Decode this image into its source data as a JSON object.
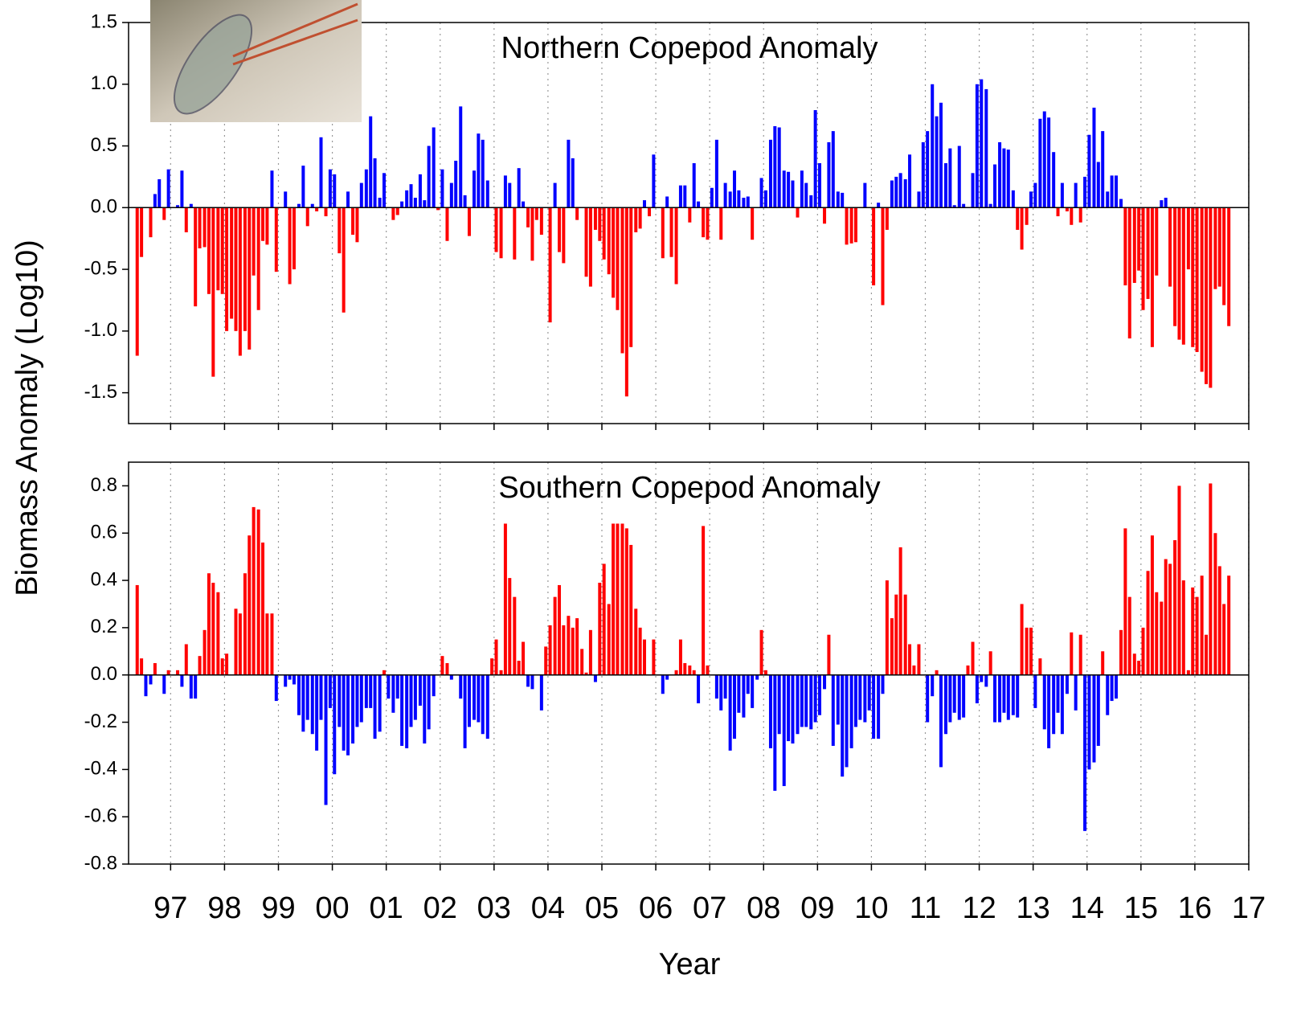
{
  "chart_data": [
    {
      "type": "bar",
      "title": "Northern Copepod Anomaly",
      "ylabel": "Biomass Anomaly (Log10)",
      "positive_color": "#0000ff",
      "negative_color": "#ff0000",
      "xgrid": true,
      "xlim": [
        1996.22,
        2017
      ],
      "ylim": [
        -1.75,
        1.5
      ],
      "xticks": [
        1997,
        1998,
        1999,
        2000,
        2001,
        2002,
        2003,
        2004,
        2005,
        2006,
        2007,
        2008,
        2009,
        2010,
        2011,
        2012,
        2013,
        2014,
        2015,
        2016,
        2017
      ],
      "yticks": [
        1.5,
        {
          "value": 1,
          "label": "1.0"
        },
        0.5,
        {
          "value": 0,
          "label": "0.0"
        },
        -0.5,
        {
          "value": -1,
          "label": "-1.0"
        },
        -1.5
      ],
      "x": [
        1996.38,
        1996.46,
        1996.54,
        1996.63,
        1996.71,
        1996.79,
        1996.88,
        1996.96,
        1997.04,
        1997.13,
        1997.21,
        1997.29,
        1997.38,
        1997.46,
        1997.54,
        1997.63,
        1997.71,
        1997.79,
        1997.88,
        1997.96,
        1998.04,
        1998.13,
        1998.21,
        1998.29,
        1998.38,
        1998.46,
        1998.54,
        1998.63,
        1998.71,
        1998.79,
        1998.88,
        1998.96,
        1999.04,
        1999.13,
        1999.21,
        1999.29,
        1999.38,
        1999.46,
        1999.54,
        1999.63,
        1999.71,
        1999.79,
        1999.88,
        1999.96,
        2000.04,
        2000.13,
        2000.21,
        2000.29,
        2000.38,
        2000.46,
        2000.54,
        2000.63,
        2000.71,
        2000.79,
        2000.88,
        2000.96,
        2001.04,
        2001.13,
        2001.21,
        2001.29,
        2001.38,
        2001.46,
        2001.54,
        2001.63,
        2001.71,
        2001.79,
        2001.88,
        2001.96,
        2002.04,
        2002.13,
        2002.21,
        2002.29,
        2002.38,
        2002.46,
        2002.54,
        2002.63,
        2002.71,
        2002.79,
        2002.88,
        2002.96,
        2003.04,
        2003.13,
        2003.21,
        2003.29,
        2003.38,
        2003.46,
        2003.54,
        2003.63,
        2003.71,
        2003.79,
        2003.88,
        2003.96,
        2004.04,
        2004.13,
        2004.21,
        2004.29,
        2004.38,
        2004.46,
        2004.54,
        2004.63,
        2004.71,
        2004.79,
        2004.88,
        2004.96,
        2005.04,
        2005.13,
        2005.21,
        2005.29,
        2005.38,
        2005.46,
        2005.54,
        2005.63,
        2005.71,
        2005.79,
        2005.88,
        2005.96,
        2006.04,
        2006.13,
        2006.21,
        2006.29,
        2006.38,
        2006.46,
        2006.54,
        2006.63,
        2006.71,
        2006.79,
        2006.88,
        2006.96,
        2007.04,
        2007.13,
        2007.21,
        2007.29,
        2007.38,
        2007.46,
        2007.54,
        2007.63,
        2007.71,
        2007.79,
        2007.88,
        2007.96,
        2008.04,
        2008.13,
        2008.21,
        2008.29,
        2008.38,
        2008.46,
        2008.54,
        2008.63,
        2008.71,
        2008.79,
        2008.88,
        2008.96,
        2009.04,
        2009.13,
        2009.21,
        2009.29,
        2009.38,
        2009.46,
        2009.54,
        2009.63,
        2009.71,
        2009.79,
        2009.88,
        2009.96,
        2010.04,
        2010.13,
        2010.21,
        2010.29,
        2010.38,
        2010.46,
        2010.54,
        2010.63,
        2010.71,
        2010.79,
        2010.88,
        2010.96,
        2011.04,
        2011.13,
        2011.21,
        2011.29,
        2011.38,
        2011.46,
        2011.54,
        2011.63,
        2011.71,
        2011.79,
        2011.88,
        2011.96,
        2012.04,
        2012.13,
        2012.21,
        2012.29,
        2012.38,
        2012.46,
        2012.54,
        2012.63,
        2012.71,
        2012.79,
        2012.88,
        2012.96,
        2013.04,
        2013.13,
        2013.21,
        2013.29,
        2013.38,
        2013.46,
        2013.54,
        2013.63,
        2013.71,
        2013.79,
        2013.88,
        2013.96,
        2014.04,
        2014.13,
        2014.21,
        2014.29,
        2014.38,
        2014.46,
        2014.54,
        2014.63,
        2014.71,
        2014.79,
        2014.88,
        2014.96,
        2015.04,
        2015.13,
        2015.21,
        2015.29,
        2015.38,
        2015.46,
        2015.54,
        2015.63,
        2015.71,
        2015.79,
        2015.88,
        2015.96,
        2016.04,
        2016.13,
        2016.21,
        2016.29,
        2016.38,
        2016.46,
        2016.54,
        2016.63
      ],
      "values": [
        -1.2,
        -0.4,
        null,
        -0.24,
        0.11,
        0.23,
        -0.1,
        0.31,
        null,
        0.02,
        0.3,
        -0.2,
        0.03,
        -0.8,
        -0.33,
        -0.32,
        -0.7,
        -1.37,
        -0.67,
        -0.7,
        -1.0,
        -0.9,
        -1.0,
        -1.2,
        -1.0,
        -1.15,
        -0.55,
        -0.83,
        -0.27,
        -0.3,
        0.3,
        -0.52,
        null,
        0.13,
        -0.62,
        -0.5,
        0.03,
        0.34,
        -0.15,
        0.03,
        -0.03,
        0.57,
        -0.07,
        0.31,
        0.27,
        -0.37,
        -0.85,
        0.13,
        -0.22,
        -0.28,
        0.2,
        0.31,
        0.74,
        0.4,
        0.08,
        0.28,
        null,
        -0.1,
        -0.06,
        0.05,
        0.14,
        0.19,
        0.08,
        0.27,
        0.06,
        0.5,
        0.65,
        -0.02,
        0.31,
        -0.27,
        0.2,
        0.38,
        0.82,
        0.1,
        -0.23,
        0.3,
        0.6,
        0.55,
        0.22,
        null,
        -0.36,
        -0.41,
        0.26,
        0.2,
        -0.42,
        0.32,
        0.05,
        -0.16,
        -0.43,
        -0.1,
        -0.22,
        null,
        -0.93,
        0.2,
        -0.36,
        -0.45,
        0.55,
        0.4,
        -0.1,
        null,
        -0.56,
        -0.64,
        -0.18,
        -0.27,
        -0.42,
        -0.54,
        -0.73,
        -0.83,
        -1.18,
        -1.53,
        -1.13,
        -0.2,
        -0.17,
        0.06,
        -0.07,
        0.43,
        null,
        -0.41,
        0.09,
        -0.4,
        -0.62,
        0.18,
        0.18,
        -0.12,
        0.36,
        0.05,
        -0.24,
        -0.26,
        0.16,
        0.55,
        -0.26,
        0.2,
        0.13,
        0.3,
        0.14,
        0.08,
        0.09,
        -0.26,
        null,
        0.24,
        0.14,
        0.55,
        0.66,
        0.65,
        0.3,
        0.29,
        0.22,
        -0.08,
        0.3,
        0.2,
        0.1,
        0.79,
        0.36,
        -0.13,
        0.53,
        0.62,
        0.13,
        0.12,
        -0.3,
        -0.29,
        -0.28,
        null,
        0.2,
        null,
        -0.63,
        0.04,
        -0.79,
        -0.18,
        0.22,
        0.25,
        0.28,
        0.23,
        0.43,
        null,
        0.13,
        0.53,
        0.62,
        1.0,
        0.74,
        0.85,
        0.36,
        0.48,
        0.02,
        0.5,
        0.03,
        null,
        0.28,
        1.0,
        1.04,
        0.96,
        0.03,
        0.35,
        0.53,
        0.48,
        0.47,
        0.14,
        -0.18,
        -0.34,
        -0.14,
        0.13,
        0.2,
        0.72,
        0.78,
        0.73,
        0.45,
        -0.07,
        0.2,
        -0.03,
        -0.14,
        0.2,
        -0.12,
        0.25,
        0.59,
        0.81,
        0.37,
        0.62,
        0.13,
        0.26,
        0.26,
        0.07,
        -0.63,
        -1.06,
        -0.61,
        -0.51,
        -0.83,
        -0.74,
        -1.13,
        -0.55,
        0.06,
        0.08,
        -0.64,
        -0.96,
        -1.07,
        -1.11,
        -0.5,
        -1.13,
        -1.17,
        -1.33,
        -1.43,
        -1.46,
        -0.66,
        -0.64,
        -0.79,
        -0.96
      ]
    },
    {
      "type": "bar",
      "title": "Southern Copepod Anomaly",
      "xlabel": "Year",
      "positive_color": "#ff0000",
      "negative_color": "#0000ff",
      "xgrid": true,
      "xlim": [
        1996.22,
        2017
      ],
      "ylim": [
        -0.8,
        0.9
      ],
      "xticks": [
        {
          "value": 1997,
          "label": "97"
        },
        {
          "value": 1998,
          "label": "98"
        },
        {
          "value": 1999,
          "label": "99"
        },
        {
          "value": 2000,
          "label": "00"
        },
        {
          "value": 2001,
          "label": "01"
        },
        {
          "value": 2002,
          "label": "02"
        },
        {
          "value": 2003,
          "label": "03"
        },
        {
          "value": 2004,
          "label": "04"
        },
        {
          "value": 2005,
          "label": "05"
        },
        {
          "value": 2006,
          "label": "06"
        },
        {
          "value": 2007,
          "label": "07"
        },
        {
          "value": 2008,
          "label": "08"
        },
        {
          "value": 2009,
          "label": "09"
        },
        {
          "value": 2010,
          "label": "10"
        },
        {
          "value": 2011,
          "label": "11"
        },
        {
          "value": 2012,
          "label": "12"
        },
        {
          "value": 2013,
          "label": "13"
        },
        {
          "value": 2014,
          "label": "14"
        },
        {
          "value": 2015,
          "label": "15"
        },
        {
          "value": 2016,
          "label": "16"
        },
        {
          "value": 2017,
          "label": "17"
        }
      ],
      "yticks": [
        0.8,
        0.6,
        0.4,
        0.2,
        {
          "value": 0,
          "label": "0.0"
        },
        -0.2,
        -0.4,
        -0.6,
        -0.8
      ],
      "x": [
        1996.38,
        1996.46,
        1996.54,
        1996.63,
        1996.71,
        1996.79,
        1996.88,
        1996.96,
        1997.04,
        1997.13,
        1997.21,
        1997.29,
        1997.38,
        1997.46,
        1997.54,
        1997.63,
        1997.71,
        1997.79,
        1997.88,
        1997.96,
        1998.04,
        1998.13,
        1998.21,
        1998.29,
        1998.38,
        1998.46,
        1998.54,
        1998.63,
        1998.71,
        1998.79,
        1998.88,
        1998.96,
        1999.04,
        1999.13,
        1999.21,
        1999.29,
        1999.38,
        1999.46,
        1999.54,
        1999.63,
        1999.71,
        1999.79,
        1999.88,
        1999.96,
        2000.04,
        2000.13,
        2000.21,
        2000.29,
        2000.38,
        2000.46,
        2000.54,
        2000.63,
        2000.71,
        2000.79,
        2000.88,
        2000.96,
        2001.04,
        2001.13,
        2001.21,
        2001.29,
        2001.38,
        2001.46,
        2001.54,
        2001.63,
        2001.71,
        2001.79,
        2001.88,
        2001.96,
        2002.04,
        2002.13,
        2002.21,
        2002.29,
        2002.38,
        2002.46,
        2002.54,
        2002.63,
        2002.71,
        2002.79,
        2002.88,
        2002.96,
        2003.04,
        2003.13,
        2003.21,
        2003.29,
        2003.38,
        2003.46,
        2003.54,
        2003.63,
        2003.71,
        2003.79,
        2003.88,
        2003.96,
        2004.04,
        2004.13,
        2004.21,
        2004.29,
        2004.38,
        2004.46,
        2004.54,
        2004.63,
        2004.71,
        2004.79,
        2004.88,
        2004.96,
        2005.04,
        2005.13,
        2005.21,
        2005.29,
        2005.38,
        2005.46,
        2005.54,
        2005.63,
        2005.71,
        2005.79,
        2005.88,
        2005.96,
        2006.04,
        2006.13,
        2006.21,
        2006.29,
        2006.38,
        2006.46,
        2006.54,
        2006.63,
        2006.71,
        2006.79,
        2006.88,
        2006.96,
        2007.04,
        2007.13,
        2007.21,
        2007.29,
        2007.38,
        2007.46,
        2007.54,
        2007.63,
        2007.71,
        2007.79,
        2007.88,
        2007.96,
        2008.04,
        2008.13,
        2008.21,
        2008.29,
        2008.38,
        2008.46,
        2008.54,
        2008.63,
        2008.71,
        2008.79,
        2008.88,
        2008.96,
        2009.04,
        2009.13,
        2009.21,
        2009.29,
        2009.38,
        2009.46,
        2009.54,
        2009.63,
        2009.71,
        2009.79,
        2009.88,
        2009.96,
        2010.04,
        2010.13,
        2010.21,
        2010.29,
        2010.38,
        2010.46,
        2010.54,
        2010.63,
        2010.71,
        2010.79,
        2010.88,
        2010.96,
        2011.04,
        2011.13,
        2011.21,
        2011.29,
        2011.38,
        2011.46,
        2011.54,
        2011.63,
        2011.71,
        2011.79,
        2011.88,
        2011.96,
        2012.04,
        2012.13,
        2012.21,
        2012.29,
        2012.38,
        2012.46,
        2012.54,
        2012.63,
        2012.71,
        2012.79,
        2012.88,
        2012.96,
        2013.04,
        2013.13,
        2013.21,
        2013.29,
        2013.38,
        2013.46,
        2013.54,
        2013.63,
        2013.71,
        2013.79,
        2013.88,
        2013.96,
        2014.04,
        2014.13,
        2014.21,
        2014.29,
        2014.38,
        2014.46,
        2014.54,
        2014.63,
        2014.71,
        2014.79,
        2014.88,
        2014.96,
        2015.04,
        2015.13,
        2015.21,
        2015.29,
        2015.38,
        2015.46,
        2015.54,
        2015.63,
        2015.71,
        2015.79,
        2015.88,
        2015.96,
        2016.04,
        2016.13,
        2016.21,
        2016.29,
        2016.38,
        2016.46,
        2016.54,
        2016.63
      ],
      "values": [
        0.38,
        0.07,
        -0.09,
        -0.04,
        0.05,
        null,
        -0.08,
        0.02,
        null,
        0.02,
        -0.05,
        0.13,
        -0.1,
        -0.1,
        0.08,
        0.19,
        0.43,
        0.39,
        0.35,
        0.07,
        0.09,
        null,
        0.28,
        0.26,
        0.43,
        0.59,
        0.71,
        0.7,
        0.56,
        0.26,
        0.26,
        -0.11,
        null,
        -0.05,
        -0.02,
        -0.04,
        -0.17,
        -0.24,
        -0.19,
        -0.25,
        -0.32,
        -0.19,
        -0.55,
        -0.14,
        -0.42,
        -0.22,
        -0.32,
        -0.34,
        -0.29,
        -0.22,
        -0.2,
        -0.14,
        -0.14,
        -0.27,
        -0.24,
        0.02,
        -0.1,
        -0.16,
        -0.1,
        -0.3,
        -0.31,
        -0.22,
        -0.19,
        -0.13,
        -0.29,
        -0.23,
        -0.09,
        null,
        0.08,
        0.05,
        -0.02,
        null,
        -0.1,
        -0.31,
        -0.22,
        -0.19,
        -0.2,
        -0.25,
        -0.27,
        0.07,
        0.15,
        0.02,
        0.64,
        0.41,
        0.33,
        0.06,
        0.14,
        -0.05,
        -0.06,
        null,
        -0.15,
        0.12,
        0.21,
        0.33,
        0.38,
        0.21,
        0.25,
        0.2,
        0.24,
        0.11,
        0.01,
        0.19,
        -0.03,
        0.39,
        0.47,
        0.3,
        0.64,
        0.64,
        0.64,
        0.62,
        0.55,
        0.28,
        0.2,
        0.15,
        null,
        0.15,
        null,
        -0.08,
        -0.02,
        null,
        0.02,
        0.15,
        0.05,
        0.04,
        0.02,
        -0.12,
        0.63,
        0.04,
        null,
        -0.1,
        -0.15,
        -0.1,
        -0.32,
        -0.27,
        -0.16,
        -0.18,
        -0.08,
        -0.14,
        -0.02,
        0.19,
        0.02,
        -0.31,
        -0.49,
        -0.25,
        -0.47,
        -0.28,
        -0.29,
        -0.25,
        -0.22,
        -0.22,
        -0.23,
        -0.2,
        -0.17,
        -0.06,
        0.17,
        -0.3,
        -0.21,
        -0.43,
        -0.39,
        -0.31,
        -0.22,
        -0.19,
        -0.2,
        -0.15,
        -0.27,
        -0.27,
        -0.08,
        0.4,
        0.24,
        0.34,
        0.54,
        0.34,
        0.13,
        0.04,
        0.13,
        null,
        -0.2,
        -0.09,
        0.02,
        -0.39,
        -0.25,
        -0.2,
        -0.16,
        -0.19,
        -0.18,
        0.04,
        0.14,
        -0.12,
        -0.03,
        -0.05,
        0.1,
        -0.2,
        -0.2,
        -0.16,
        -0.19,
        -0.17,
        -0.18,
        0.3,
        0.2,
        0.2,
        -0.14,
        0.07,
        -0.23,
        -0.31,
        -0.25,
        -0.16,
        -0.25,
        -0.08,
        0.18,
        -0.15,
        0.17,
        -0.66,
        -0.4,
        -0.37,
        -0.3,
        0.1,
        -0.17,
        -0.11,
        -0.1,
        0.19,
        0.62,
        0.33,
        0.09,
        0.06,
        0.2,
        0.44,
        0.59,
        0.35,
        0.31,
        0.49,
        0.47,
        0.57,
        0.8,
        0.4,
        0.02,
        0.37,
        0.33,
        0.42,
        0.17,
        0.81,
        0.6,
        0.46,
        0.3,
        0.42
      ]
    }
  ]
}
